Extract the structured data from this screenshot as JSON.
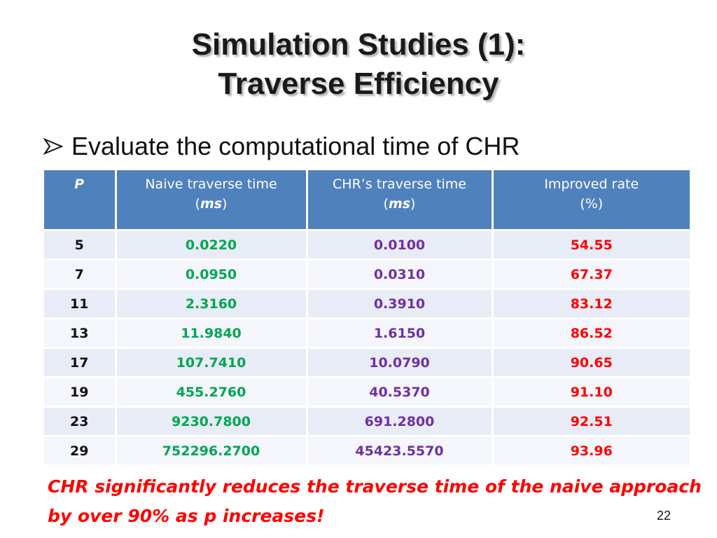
{
  "slide": {
    "title_line1": "Simulation Studies (1):",
    "title_line2": "Traverse Efficiency",
    "bullet": "Evaluate the computational time of CHR",
    "page_number": "22"
  },
  "table": {
    "headers": {
      "p": "P",
      "naive_label": "Naive traverse time",
      "naive_unit": "ms",
      "chr_label": "CHR’s traverse time",
      "chr_unit": "ms",
      "rate_label": "Improved rate",
      "rate_unit": "(%)"
    },
    "rows": [
      {
        "p": "5",
        "naive": "0.0220",
        "chr": "0.0100",
        "rate": "54.55"
      },
      {
        "p": "7",
        "naive": "0.0950",
        "chr": "0.0310",
        "rate": "67.37"
      },
      {
        "p": "11",
        "naive": "2.3160",
        "chr": "0.3910",
        "rate": "83.12"
      },
      {
        "p": "13",
        "naive": "11.9840",
        "chr": "1.6150",
        "rate": "86.52"
      },
      {
        "p": "17",
        "naive": "107.7410",
        "chr": "10.0790",
        "rate": "90.65"
      },
      {
        "p": "19",
        "naive": "455.2760",
        "chr": "40.5370",
        "rate": "91.10"
      },
      {
        "p": "23",
        "naive": "9230.7800",
        "chr": "691.2800",
        "rate": "92.51"
      },
      {
        "p": "29",
        "naive": "752296.2700",
        "chr": "45423.5570",
        "rate": "93.96"
      }
    ]
  },
  "conclusion": {
    "line1": "CHR significantly reduces the traverse time of the naive approach",
    "line2": "by over 90% as p increases!"
  },
  "colors": {
    "header_bg": "#4f81bd",
    "naive_text": "#00a651",
    "chr_text": "#7030a0",
    "rate_text": "#ff0000",
    "conclusion_text": "#ff0000"
  }
}
